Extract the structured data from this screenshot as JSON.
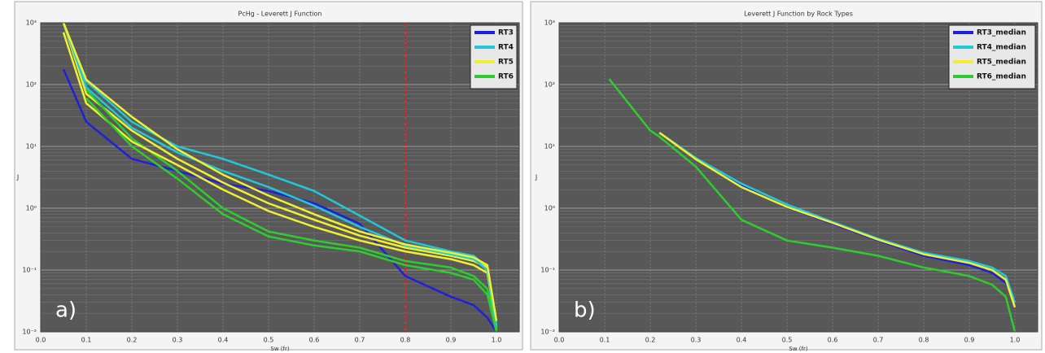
{
  "chart_data": [
    {
      "type": "line",
      "title": "PcHg - Leverett J Function",
      "xlabel": "Sw (fr)",
      "ylabel": "J",
      "annotation": "a)",
      "x": [
        0.05,
        0.1,
        0.2,
        0.3,
        0.4,
        0.5,
        0.6,
        0.7,
        0.8,
        0.9,
        0.95,
        0.98,
        1.0
      ],
      "series": [
        {
          "name": "RT3",
          "color": "#1f1fdc",
          "values": [
            178,
            25,
            6.3,
            4,
            2.5,
            1.9,
            1.2,
            0.56,
            0.08,
            0.037,
            0.027,
            0.017,
            0.01
          ]
        },
        {
          "name": "RT4",
          "color": "#22c8d8",
          "values": [
            1000,
            113,
            25,
            10,
            6.3,
            3.5,
            1.9,
            0.76,
            0.3,
            0.2,
            0.17,
            0.11,
            0.013
          ]
        },
        {
          "name": "RT5",
          "color": "#f0f030",
          "values": [
            1000,
            71,
            18,
            6.3,
            2.6,
            1.2,
            0.65,
            0.36,
            0.23,
            0.17,
            0.14,
            0.11,
            0.011
          ]
        },
        {
          "name": "RT6",
          "color": "#2ecc2e",
          "values": [
            null,
            83,
            13.5,
            4,
            1.0,
            0.42,
            0.3,
            0.23,
            0.14,
            0.11,
            0.08,
            0.05,
            0.011
          ]
        },
        {
          "color": "#f0f030",
          "values": [
            700,
            50,
            12,
            5,
            2.0,
            0.9,
            0.5,
            0.3,
            0.2,
            0.15,
            0.12,
            0.09,
            0.012
          ]
        },
        {
          "color": "#22c8d8",
          "values": [
            1000,
            90,
            20,
            8,
            4,
            2.2,
            1.1,
            0.5,
            0.25,
            0.18,
            0.15,
            0.1,
            0.012
          ]
        },
        {
          "color": "#f0f030",
          "values": [
            1000,
            120,
            30,
            9,
            3.5,
            1.6,
            0.8,
            0.42,
            0.26,
            0.19,
            0.16,
            0.12,
            0.015
          ]
        },
        {
          "color": "#2ecc2e",
          "values": [
            null,
            60,
            10,
            3,
            0.8,
            0.35,
            0.25,
            0.2,
            0.12,
            0.09,
            0.07,
            0.04,
            0.01
          ]
        }
      ],
      "vline": 0.8,
      "vline_color": "#e02020",
      "xlim": [
        0,
        1.05
      ],
      "xticks": [
        {
          "value": 0,
          "label": "0.0"
        },
        0.1,
        0.2,
        0.3,
        0.4,
        0.5,
        0.6,
        0.7,
        0.8,
        0.9,
        {
          "value": 1,
          "label": "1.0"
        }
      ],
      "ylim": [
        0.01,
        1000
      ],
      "log_y": true,
      "yticks": [
        {
          "value": 0.01,
          "label": "10⁻²"
        },
        {
          "value": 0.1,
          "label": "10⁻¹"
        },
        {
          "value": 1,
          "label": "10⁰"
        },
        {
          "value": 10,
          "label": "10¹"
        },
        {
          "value": 100,
          "label": "10²"
        },
        {
          "value": 1000,
          "label": "10³"
        }
      ],
      "grid": true,
      "legend": "upper right"
    },
    {
      "type": "line",
      "title": "Leverett J Function by Rock Types",
      "xlabel": "Sw (fr)",
      "ylabel": "J",
      "annotation": "b)",
      "x": [
        0.11,
        0.2,
        0.22,
        0.3,
        0.4,
        0.5,
        0.6,
        0.7,
        0.8,
        0.9,
        0.95,
        0.98,
        1.0
      ],
      "series": [
        {
          "name": "RT3_median",
          "color": "#1f1fdc",
          "values": [
            null,
            null,
            16.7,
            6.3,
            2.3,
            1.03,
            0.56,
            0.3,
            0.17,
            0.12,
            0.09,
            0.062,
            0.032
          ]
        },
        {
          "name": "RT4_median",
          "color": "#22c8d8",
          "values": [
            null,
            null,
            16.7,
            6.5,
            2.5,
            1.15,
            0.6,
            0.32,
            0.19,
            0.14,
            0.11,
            0.08,
            0.03
          ]
        },
        {
          "name": "RT5_median",
          "color": "#f0f030",
          "values": [
            null,
            null,
            16.7,
            6.2,
            2.2,
            1.05,
            0.58,
            0.31,
            0.18,
            0.13,
            0.1,
            0.07,
            0.025
          ]
        },
        {
          "name": "RT6_median",
          "color": "#2ecc2e",
          "values": [
            123,
            18,
            14.4,
            4.7,
            0.65,
            0.3,
            0.23,
            0.17,
            0.11,
            0.08,
            0.058,
            0.037,
            0.01
          ]
        }
      ],
      "xlim": [
        0,
        1.05
      ],
      "xticks": [
        {
          "value": 0,
          "label": "0.0"
        },
        0.1,
        0.2,
        0.3,
        0.4,
        0.5,
        0.6,
        0.7,
        0.8,
        0.9,
        {
          "value": 1,
          "label": "1.0"
        }
      ],
      "ylim": [
        0.01,
        1000
      ],
      "log_y": true,
      "yticks": [
        {
          "value": 0.01,
          "label": "10⁻²"
        },
        {
          "value": 0.1,
          "label": "10⁻¹"
        },
        {
          "value": 1,
          "label": "10⁰"
        },
        {
          "value": 10,
          "label": "10¹"
        },
        {
          "value": 100,
          "label": "10²"
        },
        {
          "value": 1000,
          "label": "10³"
        }
      ],
      "grid": true,
      "legend": "upper right"
    }
  ]
}
